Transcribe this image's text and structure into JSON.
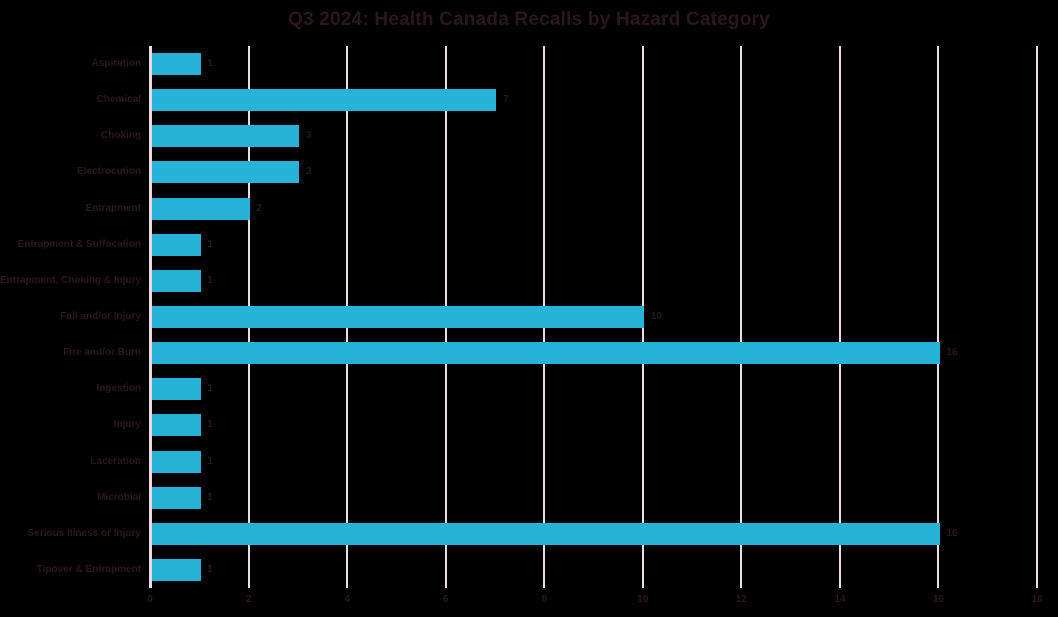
{
  "title": "Q3 2024: Health Canada Recalls by Hazard Category",
  "colors": {
    "background": "#000000",
    "bar": "#27B3D8",
    "gridline": "#EBDCE3",
    "text": "#2B161E"
  },
  "chart_data": {
    "type": "bar",
    "orientation": "horizontal",
    "title": "Q3 2024: Health Canada Recalls by Hazard Category",
    "categories": [
      "Aspiration",
      "Chemical",
      "Choking",
      "Electrocution",
      "Entrapment",
      "Entrapment & Suffocation",
      "Entrapment, Choking & Injury",
      "Fall and/or Injury",
      "Fire and/or Burn",
      "Ingestion",
      "Injury",
      "Laceration",
      "Microbial",
      "Serious Illness or Injury",
      "Tipover & Entrapment"
    ],
    "values": [
      1,
      7,
      3,
      3,
      2,
      1,
      1,
      10,
      16,
      1,
      1,
      1,
      1,
      16,
      1
    ],
    "data_labels": [
      1,
      7,
      3,
      3,
      2,
      1,
      1,
      10,
      16,
      1,
      1,
      1,
      1,
      16,
      1
    ],
    "xlabel": "",
    "ylabel": "",
    "xlim": [
      0,
      18
    ],
    "x_ticks": [
      0,
      2,
      4,
      6,
      8,
      10,
      12,
      14,
      16,
      18
    ],
    "grid": true,
    "legend": false
  }
}
